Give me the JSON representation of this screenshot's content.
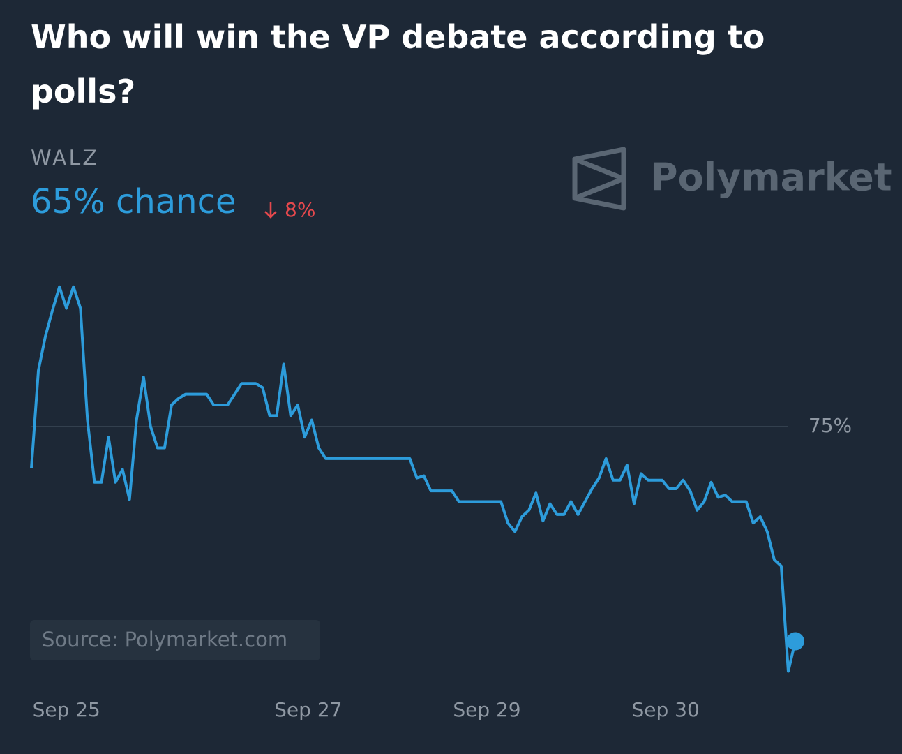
{
  "chart_data": {
    "type": "line",
    "title": "Who will win the VP debate according to polls?",
    "current_label": "65% chance",
    "change_label": "8%",
    "watermark": "Polymarket",
    "source": "Source: Polymarket.com",
    "x": [
      0,
      1,
      2,
      3,
      4,
      5,
      6,
      7,
      8,
      9,
      10,
      11,
      12,
      13,
      14,
      15,
      16,
      17,
      18,
      19,
      20,
      21,
      22,
      23,
      24,
      25,
      26,
      27,
      28,
      29,
      30,
      31,
      32,
      33,
      34,
      35,
      36,
      37,
      38,
      39,
      40,
      41,
      42,
      43,
      44,
      45,
      46,
      47,
      48,
      49,
      50,
      51,
      52,
      53,
      54,
      55,
      56,
      57,
      58,
      59,
      60,
      61,
      62,
      63,
      64,
      65,
      66,
      67,
      68,
      69,
      70,
      71,
      72,
      73,
      74,
      75,
      76,
      77,
      78,
      79,
      80,
      81,
      82,
      83,
      84,
      85,
      86,
      87,
      88,
      89,
      90,
      91,
      92,
      93,
      94,
      95,
      96,
      97,
      98,
      99,
      100,
      101,
      102,
      103,
      104,
      105,
      106,
      107,
      108,
      109
    ],
    "series": [
      {
        "name": "WALZ",
        "color": "#2d9cdb",
        "values": [
          73.05,
          77.6,
          79.2,
          80.4,
          81.5,
          80.5,
          81.5,
          80.5,
          75.3,
          72.4,
          72.4,
          74.5,
          72.4,
          73,
          71.6,
          75.3,
          77.3,
          75,
          74,
          74,
          76,
          76.3,
          76.5,
          76.5,
          76.5,
          76.5,
          76,
          76,
          76,
          76.5,
          77,
          77,
          77,
          76.8,
          75.5,
          75.5,
          77.9,
          75.5,
          76,
          74.5,
          75.3,
          74,
          73.5,
          73.5,
          73.5,
          73.5,
          73.5,
          73.5,
          73.5,
          73.5,
          73.5,
          73.5,
          73.5,
          73.5,
          73.5,
          72.6,
          72.7,
          72,
          72,
          72,
          72,
          71.5,
          71.5,
          71.5,
          71.5,
          71.5,
          71.5,
          71.5,
          70.5,
          70.1,
          70.8,
          71.1,
          71.9,
          70.6,
          71.4,
          70.9,
          70.9,
          71.5,
          70.9,
          71.5,
          72.1,
          72.6,
          73.5,
          72.5,
          72.5,
          73.2,
          71.4,
          72.8,
          72.5,
          72.5,
          72.5,
          72.1,
          72.1,
          72.5,
          72,
          71.1,
          71.5,
          72.4,
          71.7,
          71.8,
          71.5,
          71.5,
          71.5,
          70.5,
          70.8,
          70.1,
          68.8,
          68.5,
          63.6,
          65
        ]
      }
    ],
    "xlim": [
      0,
      109
    ],
    "xticks": [
      {
        "value": 5,
        "label": "Sep 25"
      },
      {
        "value": 39.5,
        "label": "Sep 27"
      },
      {
        "value": 65,
        "label": "Sep 29"
      },
      {
        "value": 90.5,
        "label": "Sep 30"
      }
    ],
    "ylim": [
      63,
      82.5
    ],
    "yticks": [
      {
        "value": 75,
        "label": "75%"
      }
    ],
    "grid": true
  }
}
